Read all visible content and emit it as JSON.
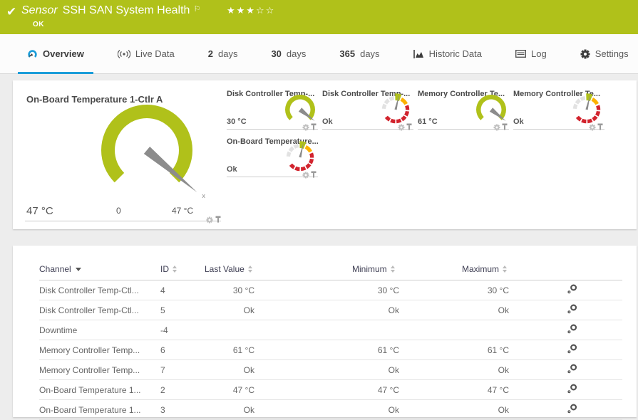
{
  "colors": {
    "brand_green": "#b0c11a",
    "accent_blue": "#1b9dd9",
    "gauge_red": "#d2232d",
    "gauge_yellow": "#fcb100",
    "gauge_gray": "#e2e2e2",
    "needle_gray": "#8c8c8c"
  },
  "header": {
    "kind_label": "Sensor",
    "title": "SSH SAN System Health",
    "status": "OK",
    "stars_filled": 3,
    "stars_total": 5
  },
  "tabs": [
    {
      "id": "overview",
      "icon": "gauge",
      "label": "Overview",
      "active": true
    },
    {
      "id": "live-data",
      "icon": "live",
      "label": "Live Data",
      "active": false
    },
    {
      "id": "2-days",
      "prefix": "2",
      "label": "days",
      "active": false
    },
    {
      "id": "30-days",
      "prefix": "30",
      "label": "days",
      "active": false
    },
    {
      "id": "365-days",
      "prefix": "365",
      "label": "days",
      "active": false
    },
    {
      "id": "historic-data",
      "icon": "chart",
      "label": "Historic Data",
      "active": false
    },
    {
      "id": "log",
      "icon": "log",
      "label": "Log",
      "active": false
    },
    {
      "id": "settings",
      "icon": "gear",
      "label": "Settings",
      "active": false
    }
  ],
  "primary_gauge": {
    "title": "On-Board Temperature 1-Ctlr A",
    "value": "47 °C",
    "scale_min": "0",
    "scale_max": "47 °C",
    "type": "radial",
    "needle_deg": 40
  },
  "small_gauges": [
    {
      "title": "Disk Controller Temp-...",
      "value": "30 °C",
      "type": "radial",
      "needle_deg": 38
    },
    {
      "title": "Disk Controller Temp-...",
      "value": "Ok",
      "type": "status",
      "needle_deg": 283
    },
    {
      "title": "Memory Controller Te...",
      "value": "61 °C",
      "type": "radial",
      "needle_deg": 38
    },
    {
      "title": "Memory Controller Te...",
      "value": "Ok",
      "type": "status",
      "needle_deg": 283
    },
    {
      "title": "On-Board Temperature...",
      "value": "Ok",
      "type": "status",
      "needle_deg": 283
    }
  ],
  "table": {
    "columns": {
      "channel": "Channel",
      "id": "ID",
      "last": "Last Value",
      "min": "Minimum",
      "max": "Maximum"
    },
    "sorted_by": "channel",
    "rows": [
      {
        "channel": "Disk Controller Temp-Ctl...",
        "id": "4",
        "last": "30 °C",
        "min": "30 °C",
        "max": "30 °C"
      },
      {
        "channel": "Disk Controller Temp-Ctl...",
        "id": "5",
        "last": "Ok",
        "min": "Ok",
        "max": "Ok"
      },
      {
        "channel": "Downtime",
        "id": "-4",
        "last": "",
        "min": "",
        "max": ""
      },
      {
        "channel": "Memory Controller Temp...",
        "id": "6",
        "last": "61 °C",
        "min": "61 °C",
        "max": "61 °C"
      },
      {
        "channel": "Memory Controller Temp...",
        "id": "7",
        "last": "Ok",
        "min": "Ok",
        "max": "Ok"
      },
      {
        "channel": "On-Board Temperature 1...",
        "id": "2",
        "last": "47 °C",
        "min": "47 °C",
        "max": "47 °C"
      },
      {
        "channel": "On-Board Temperature 1...",
        "id": "3",
        "last": "Ok",
        "min": "Ok",
        "max": "Ok"
      }
    ]
  }
}
